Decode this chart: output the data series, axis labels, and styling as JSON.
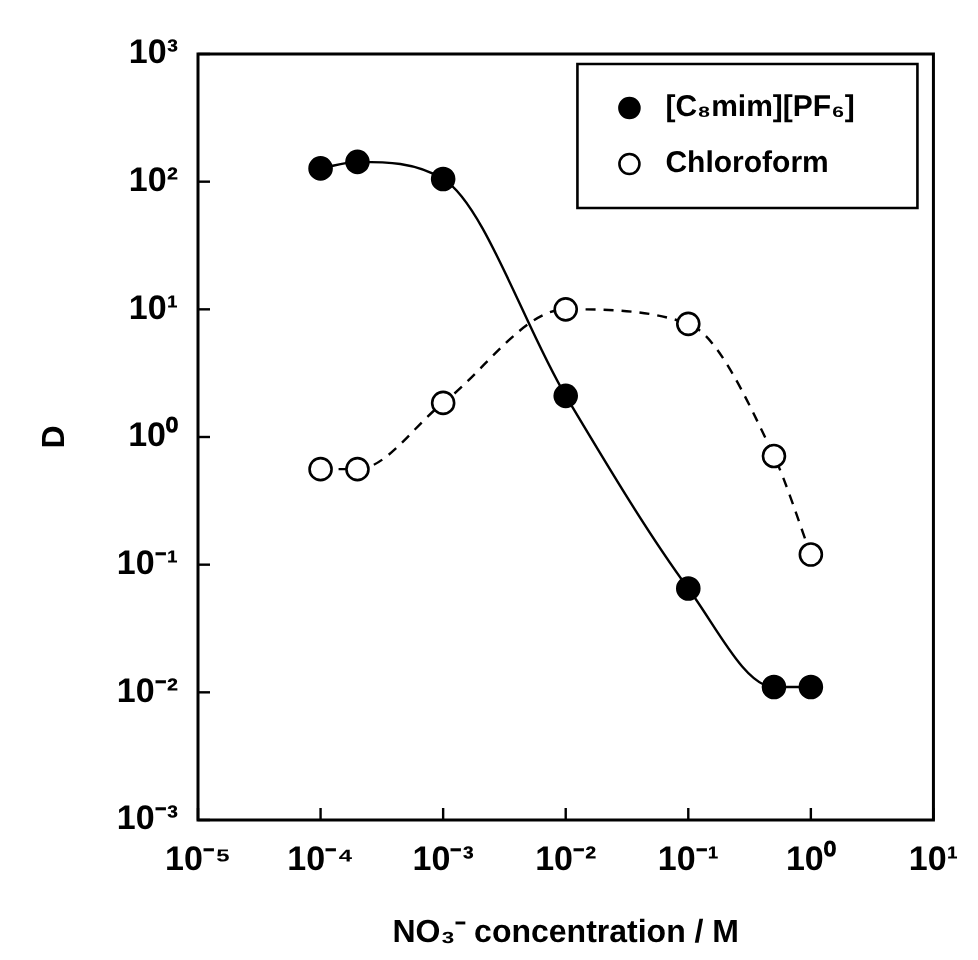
{
  "chart_data": {
    "type": "line",
    "xlabel": "NO₃⁻ concentration / M",
    "ylabel": "D",
    "log": "xy",
    "xlim": [
      1e-05,
      10
    ],
    "ylim": [
      0.001,
      1000
    ],
    "xticks": [
      {
        "value": 1e-05,
        "label": "10⁻⁵"
      },
      {
        "value": 0.0001,
        "label": "10⁻⁴"
      },
      {
        "value": 0.001,
        "label": "10⁻³"
      },
      {
        "value": 0.01,
        "label": "10⁻²"
      },
      {
        "value": 0.1,
        "label": "10⁻¹"
      },
      {
        "value": 1,
        "label": "10⁰"
      },
      {
        "value": 10,
        "label": "10¹"
      }
    ],
    "yticks": [
      {
        "value": 0.001,
        "label": "10⁻³"
      },
      {
        "value": 0.01,
        "label": "10⁻²"
      },
      {
        "value": 0.1,
        "label": "10⁻¹"
      },
      {
        "value": 1,
        "label": "10⁰"
      },
      {
        "value": 10,
        "label": "10¹"
      },
      {
        "value": 100,
        "label": "10²"
      },
      {
        "value": 1000,
        "label": "10³"
      }
    ],
    "grid": false,
    "legend": "top right",
    "marker": "circle",
    "series": [
      {
        "name": "[C₈mim][PF₆]",
        "color": "#000000",
        "line_style": "solid",
        "x": [
          0.0001,
          0.0002,
          0.001,
          0.01,
          0.1,
          0.5,
          1
        ],
        "values": [
          127,
          143,
          105,
          2.1,
          0.065,
          0.011,
          0.011
        ]
      },
      {
        "name": "Chloroform",
        "color": "#000000",
        "line_style": "dashed",
        "colors": [
          "#ffffff",
          "#ffffff",
          "#ffffff",
          "#ffffff",
          "#ffffff",
          "#ffffff",
          "#ffffff"
        ],
        "x": [
          0.0001,
          0.0002,
          0.001,
          0.01,
          0.1,
          0.5,
          1
        ],
        "values": [
          0.56,
          0.56,
          1.85,
          10,
          7.7,
          0.71,
          0.12
        ]
      }
    ]
  }
}
